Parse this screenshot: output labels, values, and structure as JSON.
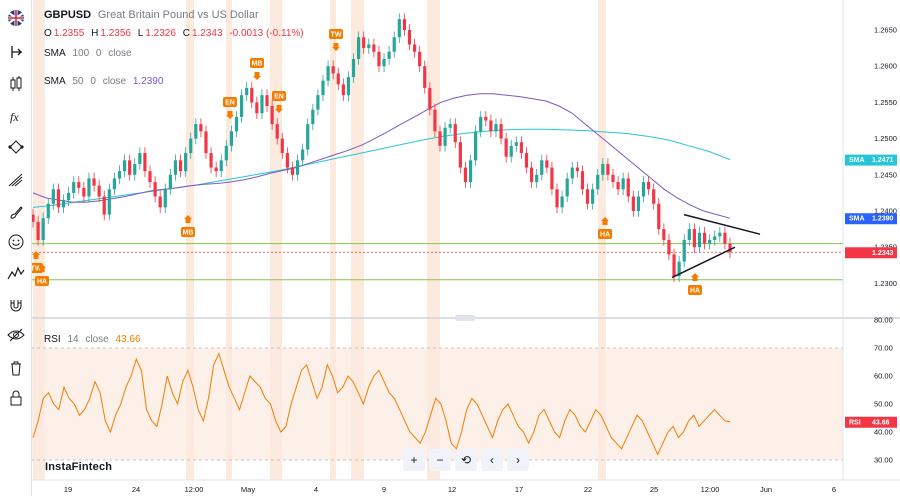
{
  "header": {
    "symbol": "GBPUSD",
    "description": "Great Britain Pound vs US Dollar",
    "ohlc": {
      "o_label": "O",
      "o": "1.2355",
      "h_label": "H",
      "h": "1.2356",
      "l_label": "L",
      "l": "1.2326",
      "c_label": "C",
      "c": "1.2343",
      "change": "-0.0013 (-0.11%)"
    },
    "sma100": {
      "name": "SMA",
      "length": "100",
      "offset": "0",
      "source": "close"
    },
    "sma50": {
      "name": "SMA",
      "length": "50",
      "offset": "0",
      "source": "close",
      "value": "1.2390"
    }
  },
  "rsi_legend": {
    "name": "RSI",
    "length": "14",
    "source": "close",
    "value": "43.66"
  },
  "brand": "InstaFintech",
  "colors": {
    "up": "#26a69a",
    "down": "#f23645",
    "sma50": "#7e57c2",
    "sma100": "#26c6da",
    "rsi": "#f57c00",
    "marker": "#f57c00",
    "grid_h": "#8bc34a",
    "trend": "#131722"
  },
  "toolbar_icons": [
    "flag-uk-icon",
    "cursor-icon",
    "candle-icon",
    "fx-icon",
    "node-icon",
    "lines-icon",
    "brush-icon",
    "emoji-icon",
    "pattern-icon",
    "magnet-icon",
    "eye-off-icon",
    "trash-icon",
    "lock-icon"
  ],
  "nav_buttons": [
    "+",
    "−",
    "⟲",
    "‹",
    "›"
  ],
  "chart_data": [
    {
      "type": "candlestick",
      "x_tick_labels": [
        "19",
        "24",
        "12:00",
        "May",
        "4",
        "9",
        "12",
        "17",
        "22",
        "25",
        "12:00",
        "Jun",
        "6"
      ],
      "y_tick_labels": [
        "1.2650",
        "1.2600",
        "1.2550",
        "1.2500",
        "1.2450",
        "1.2400",
        "1.2350",
        "1.2300"
      ],
      "ylim": [
        1.229,
        1.268
      ],
      "last_price": 1.2343,
      "price_tags": [
        {
          "label": "SMA",
          "value": "1.2471",
          "color": "#26c6da"
        },
        {
          "label": "SMA",
          "value": "1.2390",
          "color": "#2962ff"
        },
        {
          "label": "",
          "value": "1.2343",
          "color": "#f23645"
        }
      ],
      "closes": [
        1.2385,
        1.236,
        1.239,
        1.241,
        1.243,
        1.2405,
        1.2415,
        1.2425,
        1.244,
        1.2432,
        1.242,
        1.2445,
        1.2435,
        1.242,
        1.2395,
        1.243,
        1.2445,
        1.2455,
        1.247,
        1.245,
        1.2465,
        1.248,
        1.2455,
        1.244,
        1.242,
        1.2405,
        1.243,
        1.245,
        1.247,
        1.2455,
        1.248,
        1.25,
        1.252,
        1.251,
        1.248,
        1.246,
        1.2455,
        1.247,
        1.249,
        1.251,
        1.253,
        1.256,
        1.257,
        1.255,
        1.2535,
        1.256,
        1.2545,
        1.252,
        1.25,
        1.248,
        1.246,
        1.245,
        1.247,
        1.2485,
        1.252,
        1.254,
        1.256,
        1.258,
        1.26,
        1.259,
        1.2575,
        1.256,
        1.2585,
        1.261,
        1.264,
        1.2625,
        1.263,
        1.262,
        1.26,
        1.261,
        1.262,
        1.264,
        1.2665,
        1.265,
        1.263,
        1.262,
        1.26,
        1.257,
        1.254,
        1.251,
        1.249,
        1.2515,
        1.252,
        1.2495,
        1.246,
        1.244,
        1.247,
        1.251,
        1.253,
        1.2525,
        1.251,
        1.252,
        1.25,
        1.2475,
        1.249,
        1.2495,
        1.248,
        1.246,
        1.244,
        1.245,
        1.247,
        1.246,
        1.243,
        1.2405,
        1.242,
        1.2445,
        1.246,
        1.2455,
        1.243,
        1.241,
        1.243,
        1.245,
        1.2465,
        1.245,
        1.244,
        1.243,
        1.2445,
        1.242,
        1.24,
        1.242,
        1.244,
        1.243,
        1.241,
        1.2375,
        1.236,
        1.234,
        1.231,
        1.233,
        1.236,
        1.2375,
        1.235,
        1.237,
        1.2355,
        1.236,
        1.2365,
        1.237,
        1.2355,
        1.2343
      ],
      "sma50": [
        1.2425,
        1.2418,
        1.2415,
        1.2412,
        1.2412,
        1.2414,
        1.2417,
        1.242,
        1.2424,
        1.2428,
        1.243,
        1.2432,
        1.2435,
        1.2437,
        1.2438,
        1.244,
        1.2443,
        1.2447,
        1.2452,
        1.2456,
        1.246,
        1.2466,
        1.2472,
        1.2478,
        1.2484,
        1.2491,
        1.25,
        1.251,
        1.252,
        1.253,
        1.254,
        1.255,
        1.2556,
        1.256,
        1.2562,
        1.2562,
        1.256,
        1.2558,
        1.2555,
        1.2552,
        1.2545,
        1.2535,
        1.252,
        1.2505,
        1.249,
        1.2475,
        1.246,
        1.2445,
        1.243,
        1.2418,
        1.2408,
        1.24,
        1.2395,
        1.239
      ],
      "sma100": [
        1.2405,
        1.2408,
        1.2412,
        1.2416,
        1.242,
        1.2424,
        1.2428,
        1.2432,
        1.2436,
        1.2441,
        1.2446,
        1.2451,
        1.2456,
        1.2462,
        1.2468,
        1.2474,
        1.248,
        1.2486,
        1.2492,
        1.2498,
        1.2503,
        1.2507,
        1.251,
        1.2512,
        1.2513,
        1.2513,
        1.2512,
        1.2511,
        1.2509,
        1.2507,
        1.2503,
        1.2498,
        1.249,
        1.2482,
        1.2471
      ],
      "markers": [
        {
          "label": "TW",
          "kind": "up"
        },
        {
          "label": "HA",
          "kind": "up"
        },
        {
          "label": "MB",
          "kind": "up"
        },
        {
          "label": "EN",
          "kind": "down"
        },
        {
          "label": "MB",
          "kind": "down"
        },
        {
          "label": "EN",
          "kind": "down"
        },
        {
          "label": "TW",
          "kind": "down"
        },
        {
          "label": "HA",
          "kind": "up"
        },
        {
          "label": "HA",
          "kind": "up"
        }
      ],
      "levels": [
        1.2355,
        1.2305
      ],
      "triangle": {
        "upper": [
          1.2395,
          1.2368
        ],
        "lower": [
          1.2308,
          1.235
        ]
      }
    },
    {
      "type": "line",
      "name": "RSI",
      "y_tick_labels": [
        "80.00",
        "70.00",
        "60.00",
        "50.00",
        "40.00",
        "30.00"
      ],
      "ylim": [
        26,
        82
      ],
      "band": [
        30,
        70
      ],
      "last_value": "43.66",
      "values": [
        38,
        44,
        52,
        54,
        50,
        48,
        56,
        52,
        50,
        46,
        48,
        52,
        58,
        54,
        44,
        40,
        46,
        50,
        56,
        60,
        66,
        62,
        48,
        44,
        42,
        50,
        60,
        54,
        50,
        58,
        62,
        56,
        48,
        44,
        52,
        64,
        68,
        62,
        56,
        52,
        48,
        54,
        60,
        58,
        56,
        52,
        50,
        44,
        40,
        42,
        50,
        56,
        62,
        64,
        58,
        52,
        56,
        64,
        60,
        54,
        56,
        60,
        58,
        54,
        50,
        56,
        60,
        62,
        58,
        54,
        52,
        48,
        44,
        40,
        38,
        36,
        40,
        46,
        52,
        50,
        44,
        36,
        34,
        40,
        48,
        52,
        50,
        46,
        42,
        38,
        44,
        48,
        50,
        46,
        42,
        40,
        36,
        40,
        46,
        48,
        44,
        40,
        38,
        44,
        48,
        46,
        42,
        40,
        44,
        48,
        46,
        42,
        38,
        36,
        34,
        38,
        42,
        46,
        44,
        40,
        36,
        32,
        36,
        40,
        42,
        38,
        40,
        44,
        46,
        42,
        44,
        46,
        48,
        46,
        44,
        43.66
      ]
    }
  ]
}
